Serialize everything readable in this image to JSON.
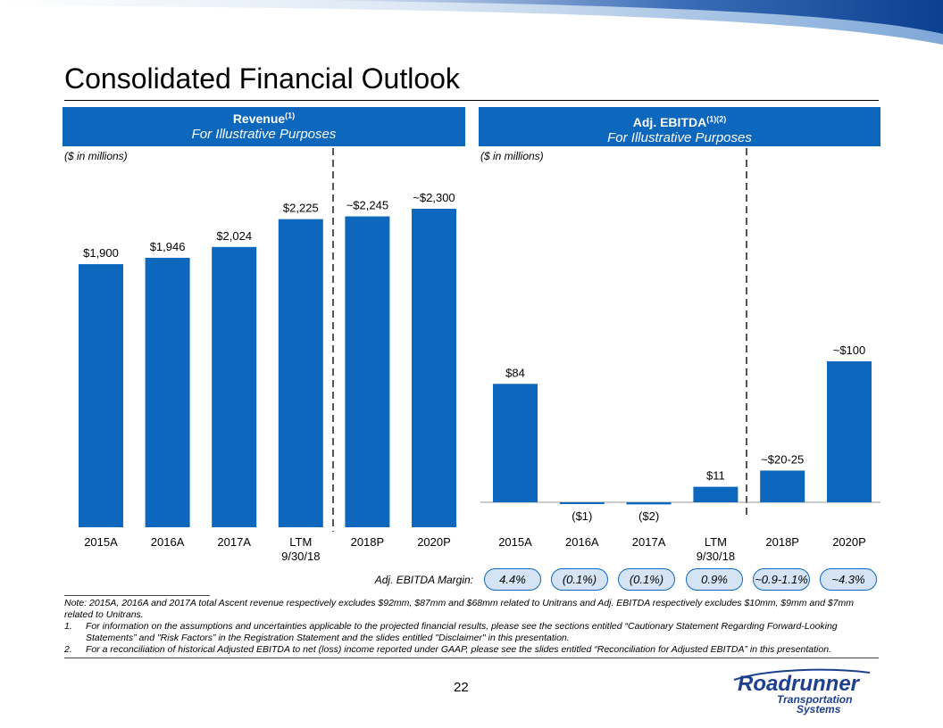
{
  "title": "Consolidated Financial Outlook",
  "page_number": "22",
  "colors": {
    "bar": "#0c67bd",
    "header": "#0c67bd",
    "pill_fill": "#d5e4f5",
    "logo": "#1d3f8f"
  },
  "revenue_panel": {
    "title": "Revenue",
    "title_sup": "(1)",
    "subtitle": "For Illustrative Purposes",
    "units": "($ in millions)"
  },
  "ebitda_panel": {
    "title": "Adj. EBITDA",
    "title_sup": "(1)(2)",
    "subtitle": "For Illustrative Purposes",
    "units": "($ in millions)"
  },
  "chart_data": [
    {
      "type": "bar",
      "title": "Revenue",
      "categories": [
        "2015A",
        "2016A",
        "2017A",
        "LTM 9/30/18",
        "2018P",
        "2020P"
      ],
      "category_lines": [
        [
          "2015A"
        ],
        [
          "2016A"
        ],
        [
          "2017A"
        ],
        [
          "LTM",
          "9/30/18"
        ],
        [
          "2018P"
        ],
        [
          "2020P"
        ]
      ],
      "values": [
        1900,
        1946,
        2024,
        2225,
        2245,
        2300
      ],
      "labels": [
        "$1,900",
        "$1,946",
        "$2,024",
        "$2,225",
        "~$2,245",
        "~$2,300"
      ],
      "ylim": [
        0,
        2300
      ],
      "divider_after_index": 3,
      "units": "$ in millions"
    },
    {
      "type": "bar",
      "title": "Adj. EBITDA",
      "categories": [
        "2015A",
        "2016A",
        "2017A",
        "LTM 9/30/18",
        "2018P",
        "2020P"
      ],
      "category_lines": [
        [
          "2015A"
        ],
        [
          "2016A"
        ],
        [
          "2017A"
        ],
        [
          "LTM",
          "9/30/18"
        ],
        [
          "2018P"
        ],
        [
          "2020P"
        ]
      ],
      "values": [
        84,
        -1,
        -2,
        11,
        22.5,
        100
      ],
      "labels": [
        "$84",
        "($1)",
        "($2)",
        "$11",
        "~$20-25",
        "~$100"
      ],
      "ylim": [
        -2,
        100
      ],
      "divider_after_index": 3,
      "units": "$ in millions"
    }
  ],
  "margins": {
    "label": "Adj. EBITDA Margin:",
    "values": [
      "4.4%",
      "(0.1%)",
      "(0.1%)",
      "0.9%",
      "~0.9-1.1%",
      "~4.3%"
    ]
  },
  "notes": {
    "note": "Note: 2015A, 2016A and 2017A total Ascent revenue respectively excludes $92mm, $87mm and $68mm related to Unitrans and Adj. EBITDA respectively excludes $10mm, $9mm and $7mm related to Unitrans.",
    "footnotes": [
      {
        "num": "1.",
        "text": "For information on the assumptions and uncertainties applicable to the projected financial results, please see the sections entitled “Cautionary Statement Regarding Forward-Looking Statements” and \"Risk Factors” in the Registration Statement and the slides entitled \"Disclaimer\" in this presentation."
      },
      {
        "num": "2.",
        "text": "For a reconciliation of historical Adjusted EBITDA to net (loss) income reported under GAAP, please see the slides entitled “Reconciliation for Adjusted EBITDA” in this presentation."
      }
    ]
  },
  "logo": {
    "line1": "Roadrunner",
    "line2": "Transportation",
    "line3": "Systems"
  }
}
